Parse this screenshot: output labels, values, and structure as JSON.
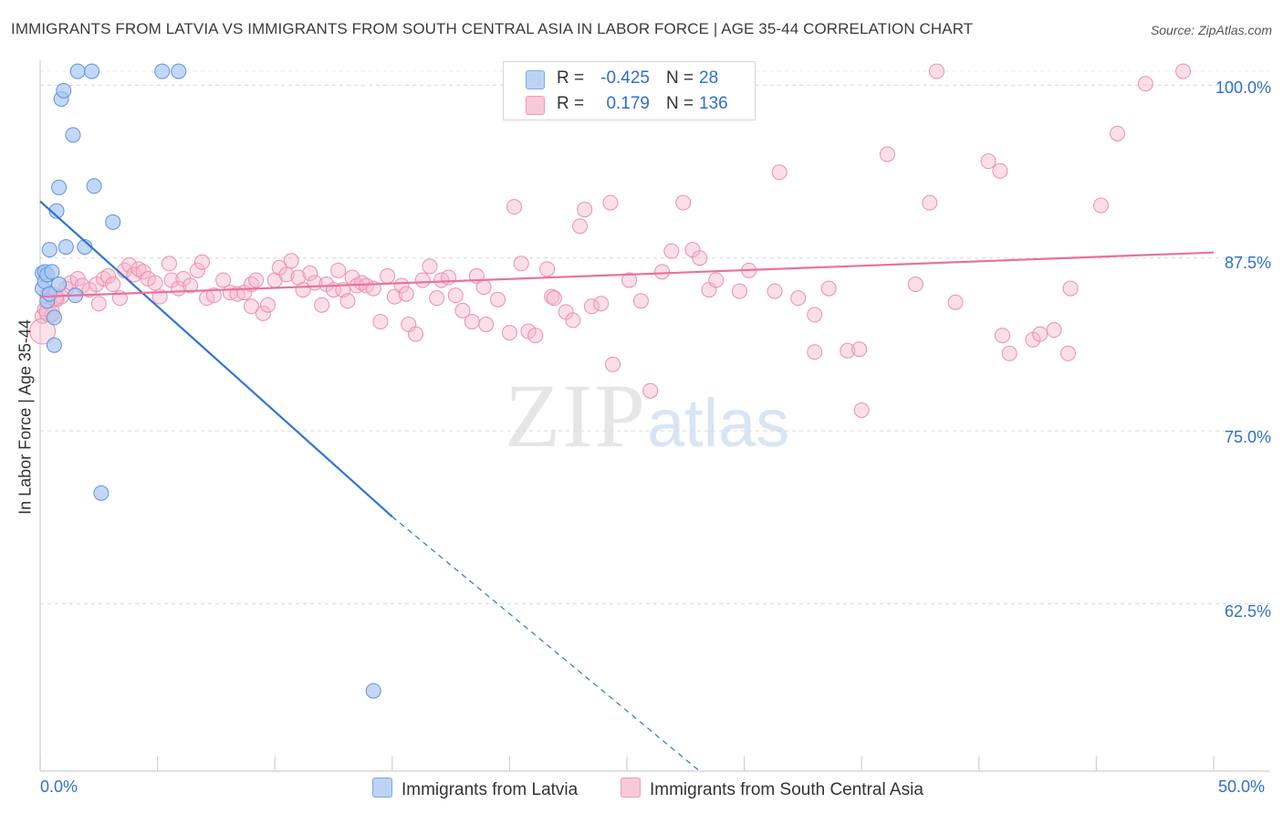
{
  "header": {
    "title": "IMMIGRANTS FROM LATVIA VS IMMIGRANTS FROM SOUTH CENTRAL ASIA IN LABOR FORCE | AGE 35-44 CORRELATION CHART",
    "source": "Source: ZipAtlas.com"
  },
  "colors": {
    "blue": "#2f74d6",
    "blue_fill": "#a9c8f2",
    "pink": "#e8729b",
    "pink_fill": "#f4b6cb",
    "tick_text": "#2f6fd0",
    "grid": "#d9d9d9"
  },
  "legend": {
    "rows": [
      {
        "r_label": "R =",
        "r_value": "-0.425",
        "n_label": "N =",
        "n_value": "28"
      },
      {
        "r_label": "R =",
        "r_value": "0.179",
        "n_label": "N =",
        "n_value": "136"
      }
    ]
  },
  "watermark": {
    "part1": "ZIP",
    "part2": "atlas"
  },
  "chart_data": {
    "type": "scatter",
    "title": "IMMIGRANTS FROM LATVIA VS IMMIGRANTS FROM SOUTH CENTRAL ASIA IN LABOR FORCE | AGE 35-44 CORRELATION CHART",
    "ylabel": "In Labor Force | Age 35-44",
    "xlabel": "",
    "xlim": [
      0,
      50
    ],
    "ylim": [
      50.4,
      101.8
    ],
    "x_tick_labels": [
      "0.0%",
      "50.0%"
    ],
    "y_ticks": [
      100.0,
      87.5,
      75.0,
      62.5
    ],
    "y_tick_labels": [
      "100.0%",
      "87.5%",
      "75.0%",
      "62.5%"
    ],
    "grid": true,
    "legend_position": "bottom",
    "series": [
      {
        "name": "Immigrants from Latvia",
        "color": "blue",
        "r": -0.425,
        "n": 28,
        "trend": {
          "x0": 0,
          "y0": 91.6,
          "x1": 15,
          "y1": 68.8,
          "dashed_to_x": 28.1,
          "dashed_to_y": 50.4
        },
        "points": [
          [
            0.1,
            86.4
          ],
          [
            0.1,
            85.3
          ],
          [
            0.2,
            85.8
          ],
          [
            0.2,
            86.5
          ],
          [
            0.3,
            86.3
          ],
          [
            0.3,
            84.4
          ],
          [
            0.4,
            88.1
          ],
          [
            0.4,
            84.9
          ],
          [
            0.5,
            86.5
          ],
          [
            0.6,
            81.2
          ],
          [
            0.7,
            90.9
          ],
          [
            0.8,
            85.6
          ],
          [
            0.8,
            92.6
          ],
          [
            0.9,
            99.0
          ],
          [
            1.0,
            99.6
          ],
          [
            1.1,
            88.3
          ],
          [
            1.4,
            96.4
          ],
          [
            1.5,
            84.8
          ],
          [
            1.6,
            101.0
          ],
          [
            1.9,
            88.3
          ],
          [
            2.2,
            101.0
          ],
          [
            2.3,
            92.7
          ],
          [
            2.6,
            70.5
          ],
          [
            3.1,
            90.1
          ],
          [
            5.2,
            101.0
          ],
          [
            5.9,
            101.0
          ],
          [
            14.2,
            56.2
          ],
          [
            0.6,
            83.2
          ]
        ]
      },
      {
        "name": "Immigrants from South Central Asia",
        "color": "pink",
        "r": 0.179,
        "n": 136,
        "trend": {
          "x0": 0,
          "y0": 84.7,
          "x1": 50,
          "y1": 87.9
        },
        "points": [
          [
            0.1,
            83.3
          ],
          [
            0.2,
            83.8
          ],
          [
            0.3,
            84.8
          ],
          [
            0.5,
            83.4
          ],
          [
            0.7,
            84.5
          ],
          [
            0.9,
            84.7
          ],
          [
            1.1,
            85.3
          ],
          [
            1.3,
            85.7
          ],
          [
            1.6,
            86.0
          ],
          [
            1.8,
            85.5
          ],
          [
            2.1,
            85.2
          ],
          [
            2.4,
            85.6
          ],
          [
            2.7,
            86.0
          ],
          [
            2.9,
            86.2
          ],
          [
            3.1,
            85.6
          ],
          [
            3.4,
            84.6
          ],
          [
            3.6,
            86.6
          ],
          [
            3.8,
            87.0
          ],
          [
            4.0,
            86.3
          ],
          [
            4.2,
            86.7
          ],
          [
            4.4,
            86.5
          ],
          [
            4.6,
            86.0
          ],
          [
            4.9,
            85.7
          ],
          [
            5.1,
            84.7
          ],
          [
            5.5,
            87.1
          ],
          [
            5.6,
            85.9
          ],
          [
            5.9,
            85.3
          ],
          [
            6.1,
            86.0
          ],
          [
            6.4,
            85.5
          ],
          [
            6.7,
            86.6
          ],
          [
            6.9,
            87.2
          ],
          [
            7.1,
            84.6
          ],
          [
            7.4,
            84.8
          ],
          [
            7.8,
            85.9
          ],
          [
            8.1,
            85.0
          ],
          [
            8.4,
            84.9
          ],
          [
            8.7,
            85.0
          ],
          [
            9.0,
            85.6
          ],
          [
            9.2,
            85.9
          ],
          [
            9.5,
            83.5
          ],
          [
            9.7,
            84.1
          ],
          [
            10.0,
            85.9
          ],
          [
            10.2,
            86.8
          ],
          [
            10.5,
            86.3
          ],
          [
            10.7,
            87.3
          ],
          [
            11.0,
            86.1
          ],
          [
            11.2,
            85.2
          ],
          [
            11.5,
            86.4
          ],
          [
            11.7,
            85.7
          ],
          [
            12.0,
            84.1
          ],
          [
            12.2,
            85.6
          ],
          [
            12.5,
            85.2
          ],
          [
            12.7,
            86.6
          ],
          [
            12.9,
            85.2
          ],
          [
            13.1,
            84.4
          ],
          [
            13.3,
            86.1
          ],
          [
            13.5,
            85.5
          ],
          [
            13.7,
            85.7
          ],
          [
            13.9,
            85.5
          ],
          [
            14.2,
            85.3
          ],
          [
            14.5,
            82.9
          ],
          [
            14.8,
            86.2
          ],
          [
            15.1,
            84.7
          ],
          [
            15.4,
            85.5
          ],
          [
            15.7,
            82.7
          ],
          [
            16.0,
            82.0
          ],
          [
            16.3,
            85.9
          ],
          [
            16.6,
            86.9
          ],
          [
            16.9,
            84.6
          ],
          [
            17.1,
            85.9
          ],
          [
            17.4,
            86.1
          ],
          [
            17.7,
            84.8
          ],
          [
            18.0,
            83.7
          ],
          [
            18.4,
            82.9
          ],
          [
            18.6,
            86.2
          ],
          [
            19.0,
            82.7
          ],
          [
            19.5,
            84.5
          ],
          [
            20.0,
            82.1
          ],
          [
            20.2,
            91.2
          ],
          [
            20.5,
            87.1
          ],
          [
            20.8,
            82.2
          ],
          [
            21.1,
            81.9
          ],
          [
            21.6,
            86.7
          ],
          [
            21.8,
            84.7
          ],
          [
            21.9,
            84.6
          ],
          [
            22.4,
            83.6
          ],
          [
            22.7,
            83.0
          ],
          [
            23.0,
            89.8
          ],
          [
            23.2,
            91.0
          ],
          [
            23.5,
            84.0
          ],
          [
            23.9,
            84.2
          ],
          [
            24.3,
            91.5
          ],
          [
            24.4,
            79.8
          ],
          [
            25.1,
            85.9
          ],
          [
            25.6,
            84.4
          ],
          [
            26.0,
            77.9
          ],
          [
            26.5,
            86.5
          ],
          [
            26.9,
            88.0
          ],
          [
            27.4,
            91.5
          ],
          [
            27.8,
            88.1
          ],
          [
            28.1,
            87.5
          ],
          [
            28.5,
            85.2
          ],
          [
            28.8,
            85.9
          ],
          [
            29.8,
            85.1
          ],
          [
            30.2,
            86.6
          ],
          [
            31.3,
            85.1
          ],
          [
            31.5,
            93.7
          ],
          [
            32.3,
            84.6
          ],
          [
            33.0,
            83.4
          ],
          [
            33.6,
            85.3
          ],
          [
            34.4,
            80.8
          ],
          [
            34.9,
            80.9
          ],
          [
            35.0,
            76.5
          ],
          [
            36.1,
            95.0
          ],
          [
            37.3,
            85.6
          ],
          [
            37.9,
            91.5
          ],
          [
            38.2,
            101.0
          ],
          [
            39.0,
            84.3
          ],
          [
            40.4,
            94.5
          ],
          [
            40.9,
            93.8
          ],
          [
            41.0,
            81.9
          ],
          [
            41.3,
            80.6
          ],
          [
            42.3,
            81.6
          ],
          [
            42.6,
            82.0
          ],
          [
            43.2,
            82.3
          ],
          [
            43.8,
            80.6
          ],
          [
            43.9,
            85.3
          ],
          [
            45.2,
            91.3
          ],
          [
            45.9,
            96.5
          ],
          [
            47.1,
            100.1
          ],
          [
            48.7,
            101.0
          ],
          [
            9.0,
            84.0
          ],
          [
            2.5,
            84.2
          ],
          [
            15.6,
            84.9
          ],
          [
            18.9,
            85.4
          ],
          [
            33.0,
            80.7
          ]
        ]
      }
    ]
  },
  "bottom_legend": {
    "items": [
      {
        "label": "Immigrants from Latvia"
      },
      {
        "label": "Immigrants from South Central Asia"
      }
    ]
  }
}
